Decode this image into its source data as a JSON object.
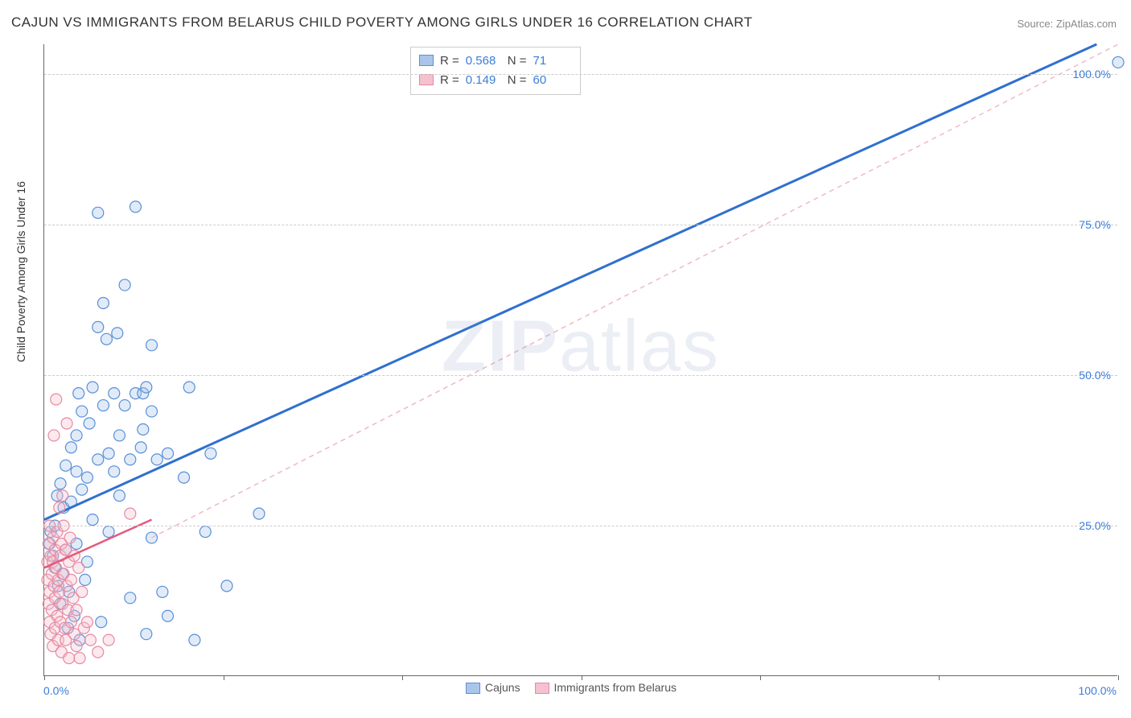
{
  "title": "CAJUN VS IMMIGRANTS FROM BELARUS CHILD POVERTY AMONG GIRLS UNDER 16 CORRELATION CHART",
  "source": "Source: ZipAtlas.com",
  "ylabel": "Child Poverty Among Girls Under 16",
  "watermark_bold": "ZIP",
  "watermark_rest": "atlas",
  "chart": {
    "type": "scatter",
    "xlim": [
      0,
      100
    ],
    "ylim": [
      0,
      105
    ],
    "x_min_label": "0.0%",
    "x_max_label": "100.0%",
    "y_ticks": [
      25,
      50,
      75,
      100
    ],
    "y_tick_labels": [
      "25.0%",
      "50.0%",
      "75.0%",
      "100.0%"
    ],
    "x_tick_positions": [
      0,
      16.67,
      33.33,
      50,
      66.67,
      83.33,
      100
    ],
    "grid_color": "#cccccc",
    "axis_color": "#666666",
    "background_color": "#ffffff",
    "marker_radius": 7,
    "marker_stroke_width": 1.2,
    "marker_fill_opacity": 0.35,
    "series": [
      {
        "name": "Cajuns",
        "color_stroke": "#5a8fd6",
        "color_fill": "#a9c6ea",
        "line_color": "#2f6fd0",
        "line_width": 3,
        "trend": {
          "x1": 0,
          "y1": 26,
          "x2": 98,
          "y2": 105,
          "dashed": false
        },
        "extrap": {
          "x1": 10,
          "y1": 23,
          "x2": 100,
          "y2": 105,
          "dashed": true,
          "color": "#f0b8c4"
        },
        "stats": {
          "R": "0.568",
          "N": "71"
        },
        "points": [
          [
            0.5,
            22
          ],
          [
            0.6,
            24
          ],
          [
            0.8,
            20
          ],
          [
            1,
            25
          ],
          [
            1,
            18
          ],
          [
            1.2,
            30
          ],
          [
            1.3,
            15
          ],
          [
            1.5,
            32
          ],
          [
            1.5,
            12
          ],
          [
            1.7,
            17
          ],
          [
            1.8,
            28
          ],
          [
            2,
            35
          ],
          [
            2,
            21
          ],
          [
            2.2,
            8
          ],
          [
            2.3,
            14
          ],
          [
            2.5,
            38
          ],
          [
            2.5,
            29
          ],
          [
            2.8,
            10
          ],
          [
            3,
            40
          ],
          [
            3,
            34
          ],
          [
            3,
            22
          ],
          [
            3.2,
            47
          ],
          [
            3.3,
            6
          ],
          [
            3.5,
            31
          ],
          [
            3.5,
            44
          ],
          [
            3.8,
            16
          ],
          [
            4,
            33
          ],
          [
            4,
            19
          ],
          [
            4.2,
            42
          ],
          [
            4.5,
            26
          ],
          [
            4.5,
            48
          ],
          [
            5,
            36
          ],
          [
            5,
            77
          ],
          [
            5,
            58
          ],
          [
            5.3,
            9
          ],
          [
            5.5,
            45
          ],
          [
            5.5,
            62
          ],
          [
            5.8,
            56
          ],
          [
            6,
            37
          ],
          [
            6,
            24
          ],
          [
            6.5,
            47
          ],
          [
            6.5,
            34
          ],
          [
            6.8,
            57
          ],
          [
            7,
            40
          ],
          [
            7,
            30
          ],
          [
            7.5,
            65
          ],
          [
            7.5,
            45
          ],
          [
            8,
            36
          ],
          [
            8,
            13
          ],
          [
            8.5,
            47
          ],
          [
            8.5,
            78
          ],
          [
            9,
            38
          ],
          [
            9.2,
            41
          ],
          [
            9.2,
            47
          ],
          [
            9.5,
            48
          ],
          [
            9.5,
            7
          ],
          [
            10,
            55
          ],
          [
            10,
            44
          ],
          [
            10,
            23
          ],
          [
            10.5,
            36
          ],
          [
            11,
            14
          ],
          [
            11.5,
            37
          ],
          [
            11.5,
            10
          ],
          [
            13,
            33
          ],
          [
            13.5,
            48
          ],
          [
            14,
            6
          ],
          [
            15,
            24
          ],
          [
            15.5,
            37
          ],
          [
            17,
            15
          ],
          [
            20,
            27
          ],
          [
            100,
            102
          ]
        ]
      },
      {
        "name": "Immigrants from Belarus",
        "color_stroke": "#e68aa2",
        "color_fill": "#f5c1cf",
        "line_color": "#e45a7d",
        "line_width": 2.5,
        "trend": {
          "x1": 0,
          "y1": 18,
          "x2": 10,
          "y2": 26,
          "dashed": false
        },
        "stats": {
          "R": "0.149",
          "N": "60"
        },
        "points": [
          [
            0.3,
            16
          ],
          [
            0.3,
            19
          ],
          [
            0.4,
            12
          ],
          [
            0.4,
            22
          ],
          [
            0.5,
            9
          ],
          [
            0.5,
            25
          ],
          [
            0.5,
            14
          ],
          [
            0.6,
            7
          ],
          [
            0.6,
            20
          ],
          [
            0.7,
            17
          ],
          [
            0.7,
            11
          ],
          [
            0.8,
            23
          ],
          [
            0.8,
            5
          ],
          [
            0.8,
            19
          ],
          [
            0.9,
            15
          ],
          [
            0.9,
            40
          ],
          [
            1,
            13
          ],
          [
            1,
            21
          ],
          [
            1,
            8
          ],
          [
            1.1,
            18
          ],
          [
            1.1,
            46
          ],
          [
            1.2,
            10
          ],
          [
            1.2,
            24
          ],
          [
            1.3,
            16
          ],
          [
            1.3,
            6
          ],
          [
            1.4,
            28
          ],
          [
            1.4,
            14
          ],
          [
            1.5,
            20
          ],
          [
            1.5,
            9
          ],
          [
            1.6,
            22
          ],
          [
            1.6,
            4
          ],
          [
            1.7,
            30
          ],
          [
            1.7,
            12
          ],
          [
            1.8,
            17
          ],
          [
            1.8,
            25
          ],
          [
            1.9,
            8
          ],
          [
            2,
            21
          ],
          [
            2,
            6
          ],
          [
            2.1,
            15
          ],
          [
            2.1,
            42
          ],
          [
            2.2,
            11
          ],
          [
            2.3,
            19
          ],
          [
            2.3,
            3
          ],
          [
            2.4,
            23
          ],
          [
            2.5,
            9
          ],
          [
            2.5,
            16
          ],
          [
            2.7,
            13
          ],
          [
            2.8,
            7
          ],
          [
            2.8,
            20
          ],
          [
            3,
            11
          ],
          [
            3,
            5
          ],
          [
            3.2,
            18
          ],
          [
            3.3,
            3
          ],
          [
            3.5,
            14
          ],
          [
            3.7,
            8
          ],
          [
            4,
            9
          ],
          [
            4.3,
            6
          ],
          [
            5,
            4
          ],
          [
            6,
            6
          ],
          [
            8,
            27
          ]
        ]
      }
    ],
    "legend": {
      "label1": "Cajuns",
      "label2": "Immigrants from Belarus"
    },
    "stats_box": {
      "r_label": "R  =",
      "n_label": "N  ="
    }
  }
}
